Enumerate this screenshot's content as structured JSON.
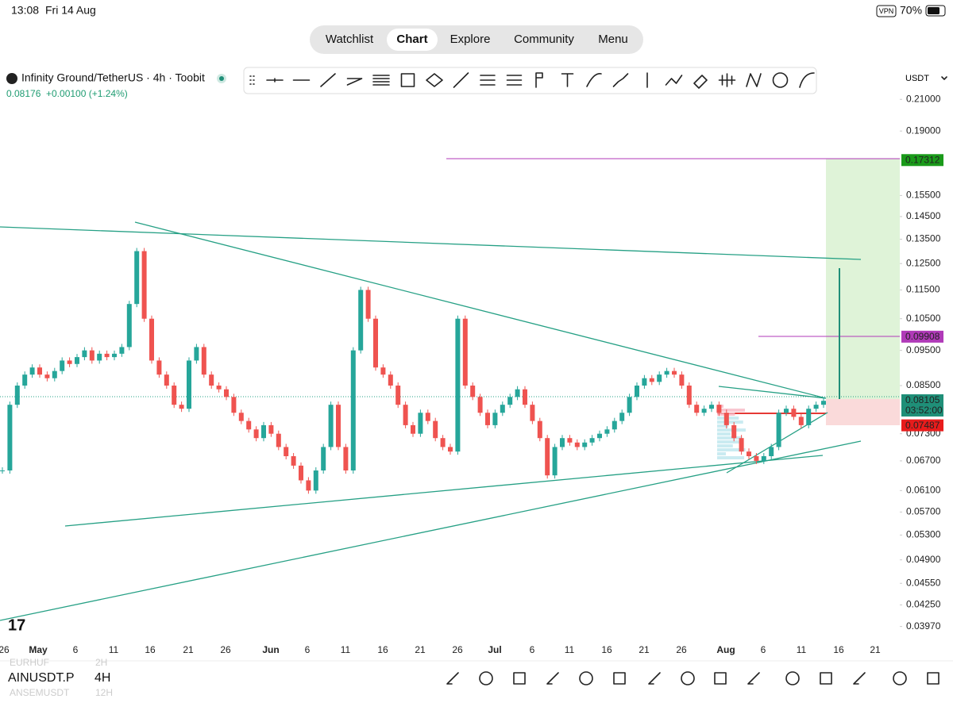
{
  "status_bar": {
    "time": "13:08",
    "date": "Fri 14 Aug",
    "vpn": "VPN",
    "battery": "70%"
  },
  "nav_tabs": [
    "Watchlist",
    "Chart",
    "Explore",
    "Community",
    "Menu"
  ],
  "header": {
    "symbol": "Infinity Ground/TetherUS · 4h · Toobit",
    "last_price": "0.08176",
    "change": "+0.00100 (+1.24%)",
    "currency": "USDT"
  },
  "chart": {
    "log_scale": true,
    "ylim": [
      0.0382,
      0.2323
    ],
    "yticks": [
      {
        "value": 0.21,
        "label": "0.21000"
      },
      {
        "value": 0.19,
        "label": "0.19000"
      },
      {
        "value": 0.155,
        "label": "0.15500"
      },
      {
        "value": 0.145,
        "label": "0.14500"
      },
      {
        "value": 0.135,
        "label": "0.13500"
      },
      {
        "value": 0.125,
        "label": "0.12500"
      },
      {
        "value": 0.115,
        "label": "0.11500"
      },
      {
        "value": 0.105,
        "label": "0.10500"
      },
      {
        "value": 0.095,
        "label": "0.09500"
      },
      {
        "value": 0.085,
        "label": "0.08500"
      },
      {
        "value": 0.073,
        "label": "0.07300"
      },
      {
        "value": 0.067,
        "label": "0.06700"
      },
      {
        "value": 0.061,
        "label": "0.06100"
      },
      {
        "value": 0.057,
        "label": "0.05700"
      },
      {
        "value": 0.053,
        "label": "0.05300"
      },
      {
        "value": 0.049,
        "label": "0.04900"
      },
      {
        "value": 0.0455,
        "label": "0.04550"
      },
      {
        "value": 0.0425,
        "label": "0.04250"
      },
      {
        "value": 0.0397,
        "label": "0.03970"
      }
    ],
    "price_badges": [
      {
        "value": 0.17312,
        "label": "0.17312",
        "color": "#1a9a1a"
      },
      {
        "value": 0.09908,
        "label": "0.09908",
        "color": "#b03ab8"
      },
      {
        "value": 0.08105,
        "label": "0.08105",
        "color": "#1f8f78"
      },
      {
        "value": 0.07487,
        "label": "0.07487",
        "color": "#e81c1c"
      }
    ],
    "countdown": "03:52:00",
    "date_labels": [
      "26",
      "May",
      "6",
      "11",
      "16",
      "21",
      "26",
      "Jun",
      "6",
      "11",
      "16",
      "21",
      "26",
      "Jul",
      "6",
      "11",
      "16",
      "21",
      "26",
      "Aug",
      "6",
      "11",
      "16",
      "21"
    ],
    "price": {
      "up_color": "#26a69a",
      "down_color": "#ef5350",
      "values": [
        0.065,
        0.08,
        0.085,
        0.088,
        0.09,
        0.088,
        0.087,
        0.089,
        0.092,
        0.091,
        0.093,
        0.095,
        0.092,
        0.094,
        0.093,
        0.094,
        0.096,
        0.11,
        0.13,
        0.105,
        0.092,
        0.088,
        0.085,
        0.08,
        0.079,
        0.092,
        0.096,
        0.088,
        0.085,
        0.084,
        0.082,
        0.078,
        0.076,
        0.074,
        0.072,
        0.075,
        0.073,
        0.07,
        0.068,
        0.066,
        0.063,
        0.061,
        0.065,
        0.07,
        0.08,
        0.07,
        0.065,
        0.095,
        0.115,
        0.105,
        0.09,
        0.088,
        0.085,
        0.08,
        0.075,
        0.073,
        0.078,
        0.076,
        0.072,
        0.07,
        0.069,
        0.105,
        0.085,
        0.082,
        0.078,
        0.075,
        0.078,
        0.08,
        0.082,
        0.084,
        0.08,
        0.076,
        0.072,
        0.064,
        0.07,
        0.072,
        0.071,
        0.07,
        0.071,
        0.072,
        0.073,
        0.074,
        0.076,
        0.078,
        0.082,
        0.085,
        0.087,
        0.086,
        0.088,
        0.089,
        0.088,
        0.085,
        0.08,
        0.078,
        0.079,
        0.08,
        0.078,
        0.075,
        0.072,
        0.069,
        0.068,
        0.067,
        0.068,
        0.07,
        0.078,
        0.079,
        0.077,
        0.075,
        0.079,
        0.08,
        0.081
      ]
    }
  },
  "bottom_bar": {
    "symbol": "AINUSDT.P",
    "interval": "4H",
    "recent": [
      {
        "symbol": "EURHUF",
        "interval": "2H"
      },
      {
        "symbol": "ANSEMUSDT",
        "interval": "12H"
      }
    ]
  }
}
